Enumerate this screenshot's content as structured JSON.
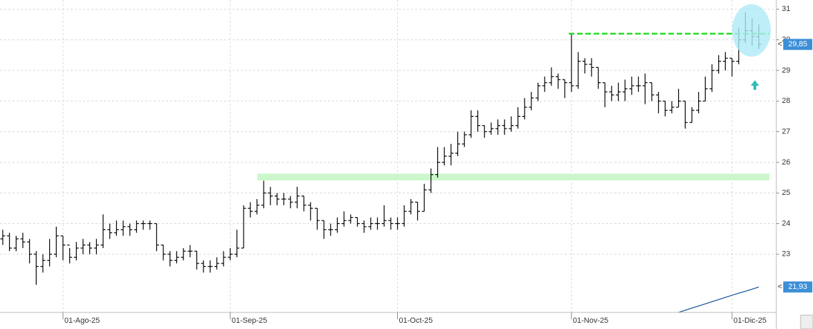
{
  "chart_data": {
    "type": "ohlc",
    "categories": [
      null,
      null,
      null,
      null,
      null,
      null,
      null,
      null,
      null,
      "01-Ago-25",
      null,
      null,
      null,
      null,
      null,
      null,
      null,
      null,
      null,
      null,
      null,
      null,
      null,
      null,
      null,
      null,
      null,
      null,
      null,
      null,
      null,
      null,
      null,
      null,
      "01-Sep-25",
      null,
      null,
      null,
      null,
      null,
      null,
      null,
      null,
      null,
      null,
      null,
      null,
      null,
      null,
      null,
      null,
      null,
      null,
      null,
      null,
      null,
      null,
      null,
      null,
      "01-Oct-25",
      null,
      null,
      null,
      null,
      null,
      null,
      null,
      null,
      null,
      null,
      null,
      null,
      null,
      null,
      null,
      null,
      null,
      null,
      null,
      null,
      null,
      null,
      null,
      null,
      null,
      "01-Nov-25",
      null,
      null,
      null,
      null,
      null,
      null,
      null,
      null,
      null,
      null,
      null,
      null,
      null,
      null,
      null,
      null,
      null,
      null,
      null,
      null,
      null,
      null,
      null,
      "01-Dic-25",
      null,
      null,
      null,
      null
    ],
    "open": [
      23.5,
      23.6,
      23.2,
      23.5,
      23.4,
      23.0,
      22.6,
      22.8,
      23.0,
      23.6,
      23.3,
      22.9,
      23.2,
      23.3,
      23.2,
      23.3,
      23.8,
      23.7,
      23.8,
      23.9,
      23.8,
      24.0,
      24.0,
      24.0,
      23.3,
      23.0,
      22.8,
      22.9,
      23.1,
      23.1,
      22.7,
      22.6,
      22.6,
      22.7,
      22.9,
      23.0,
      23.2,
      24.5,
      24.4,
      24.6,
      25.0,
      24.9,
      24.8,
      24.8,
      24.7,
      24.9,
      24.6,
      24.5,
      24.1,
      23.8,
      23.8,
      24.0,
      24.1,
      24.2,
      24.0,
      23.9,
      24.0,
      24.0,
      24.1,
      24.0,
      24.0,
      24.4,
      24.7,
      24.4,
      25.1,
      25.6,
      26.0,
      26.2,
      26.3,
      26.6,
      26.9,
      27.5,
      27.2,
      27.0,
      27.1,
      27.2,
      27.1,
      27.2,
      27.5,
      27.8,
      28.1,
      28.5,
      28.6,
      28.8,
      28.7,
      28.6,
      28.5,
      29.3,
      29.2,
      29.1,
      28.6,
      28.3,
      28.2,
      28.3,
      28.4,
      28.5,
      28.5,
      28.6,
      28.2,
      28.0,
      27.7,
      27.8,
      28.0,
      27.3,
      27.7,
      28.0,
      28.4,
      29.0,
      29.3,
      29.4,
      29.3,
      30.0,
      30.3,
      30.1
    ],
    "high": [
      23.8,
      23.7,
      23.6,
      23.7,
      23.5,
      23.1,
      23.0,
      23.5,
      23.9,
      23.6,
      23.2,
      23.4,
      23.5,
      23.4,
      23.5,
      24.3,
      24.0,
      24.1,
      24.1,
      24.0,
      24.1,
      24.1,
      24.1,
      24.0,
      23.3,
      23.1,
      23.1,
      23.2,
      23.3,
      23.1,
      22.8,
      22.8,
      22.9,
      23.1,
      23.2,
      23.8,
      24.6,
      24.7,
      24.8,
      25.4,
      25.2,
      25.0,
      25.0,
      24.9,
      25.2,
      24.9,
      24.7,
      24.5,
      24.1,
      24.0,
      24.2,
      24.4,
      24.3,
      24.2,
      24.1,
      24.2,
      24.2,
      24.6,
      24.2,
      24.2,
      24.6,
      24.8,
      24.7,
      25.3,
      25.8,
      26.5,
      26.5,
      26.6,
      27.0,
      27.0,
      27.7,
      27.7,
      27.2,
      27.3,
      27.4,
      27.4,
      27.5,
      27.8,
      28.1,
      28.3,
      28.6,
      28.8,
      29.1,
      28.9,
      28.7,
      30.2,
      29.6,
      29.4,
      29.4,
      29.1,
      28.6,
      28.5,
      28.6,
      28.7,
      28.8,
      28.8,
      28.9,
      28.6,
      28.3,
      28.0,
      28.0,
      28.4,
      28.0,
      27.8,
      28.3,
      28.8,
      29.2,
      29.5,
      29.6,
      29.4,
      30.4,
      30.9,
      30.7,
      30.5
    ],
    "low": [
      23.3,
      23.1,
      23.1,
      23.2,
      22.7,
      22.0,
      22.4,
      22.6,
      22.9,
      22.8,
      22.7,
      22.8,
      23.0,
      23.0,
      23.0,
      23.2,
      23.5,
      23.6,
      23.6,
      23.6,
      23.7,
      23.8,
      23.8,
      23.1,
      22.8,
      22.6,
      22.7,
      22.8,
      22.9,
      22.5,
      22.4,
      22.4,
      22.5,
      22.6,
      22.8,
      22.9,
      23.2,
      24.2,
      24.3,
      24.5,
      24.6,
      24.6,
      24.6,
      24.5,
      24.5,
      24.4,
      24.1,
      23.8,
      23.5,
      23.6,
      23.7,
      23.9,
      24.0,
      23.9,
      23.7,
      23.8,
      23.8,
      23.9,
      23.8,
      23.8,
      23.9,
      24.3,
      24.1,
      24.4,
      25.0,
      25.5,
      25.9,
      25.9,
      26.2,
      26.5,
      26.8,
      27.0,
      26.8,
      26.9,
      26.9,
      26.9,
      27.0,
      27.1,
      27.4,
      27.7,
      28.0,
      28.3,
      28.5,
      28.4,
      28.1,
      28.3,
      28.4,
      28.9,
      28.8,
      28.4,
      27.8,
      28.0,
      28.0,
      28.0,
      28.2,
      28.3,
      27.9,
      28.0,
      27.6,
      27.5,
      27.6,
      27.8,
      27.1,
      27.3,
      27.6,
      28.0,
      28.3,
      28.9,
      29.0,
      28.8,
      29.2,
      29.9,
      29.8,
      29.7
    ],
    "close": [
      23.6,
      23.2,
      23.5,
      23.4,
      23.0,
      22.6,
      22.8,
      23.0,
      23.6,
      23.3,
      22.9,
      23.2,
      23.3,
      23.2,
      23.3,
      23.8,
      23.7,
      23.8,
      23.9,
      23.8,
      24.0,
      24.0,
      24.0,
      23.3,
      23.0,
      22.8,
      22.9,
      23.1,
      23.1,
      22.7,
      22.6,
      22.6,
      22.7,
      22.9,
      23.0,
      23.2,
      24.5,
      24.4,
      24.6,
      25.0,
      24.9,
      24.8,
      24.8,
      24.7,
      24.9,
      24.6,
      24.5,
      24.1,
      23.8,
      23.8,
      24.0,
      24.1,
      24.2,
      24.0,
      23.9,
      24.0,
      24.0,
      24.1,
      24.0,
      24.0,
      24.4,
      24.7,
      24.4,
      25.1,
      25.6,
      26.0,
      26.2,
      26.3,
      26.6,
      26.9,
      27.5,
      27.2,
      27.0,
      27.1,
      27.2,
      27.1,
      27.2,
      27.5,
      27.8,
      28.1,
      28.5,
      28.6,
      28.8,
      28.7,
      28.6,
      28.5,
      29.3,
      29.2,
      29.1,
      28.6,
      28.3,
      28.2,
      28.3,
      28.4,
      28.5,
      28.5,
      28.6,
      28.2,
      28.0,
      27.7,
      27.8,
      28.0,
      27.3,
      27.7,
      28.0,
      28.4,
      29.0,
      29.3,
      29.4,
      29.3,
      30.0,
      30.3,
      30.1,
      29.85
    ],
    "color": "#000000",
    "last_label": {
      "value": 29.85,
      "label": "29,85"
    },
    "moving_average": {
      "color": "#1f5c9e",
      "values": [
        null,
        null,
        null,
        null,
        null,
        null,
        null,
        null,
        null,
        null,
        null,
        null,
        null,
        null,
        null,
        null,
        null,
        null,
        null,
        null,
        null,
        null,
        null,
        null,
        null,
        null,
        null,
        null,
        null,
        null,
        null,
        null,
        null,
        null,
        null,
        null,
        null,
        null,
        null,
        null,
        null,
        null,
        null,
        null,
        null,
        null,
        null,
        null,
        null,
        null,
        null,
        null,
        null,
        null,
        null,
        null,
        null,
        null,
        null,
        null,
        null,
        null,
        null,
        null,
        null,
        null,
        null,
        null,
        null,
        null,
        null,
        null,
        null,
        null,
        null,
        null,
        null,
        null,
        null,
        null,
        null,
        null,
        null,
        null,
        null,
        null,
        null,
        null,
        null,
        null,
        null,
        null,
        null,
        null,
        null,
        null,
        null,
        null,
        null,
        null,
        null,
        21.1,
        21.17,
        21.24,
        21.31,
        21.38,
        21.45,
        21.52,
        21.59,
        21.66,
        21.73,
        21.79,
        21.86,
        21.93
      ],
      "last_label": {
        "value": 21.93,
        "label": "21,93"
      }
    },
    "resistance_line": {
      "value": 30.2,
      "color": "#22dd22"
    },
    "support_band": {
      "values": [
        25.41,
        25.63
      ],
      "color": "#ccf7cc"
    },
    "ylim": [
      21.1,
      31.3
    ],
    "yticks": [
      23,
      24,
      25,
      26,
      27,
      28,
      29,
      30,
      31
    ],
    "grid": true
  }
}
